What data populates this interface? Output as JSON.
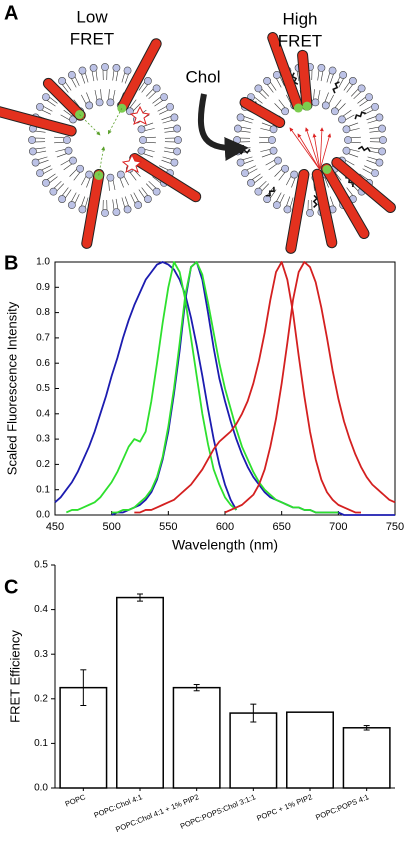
{
  "panel_a": {
    "label": "A",
    "low_fret": [
      "Low",
      "FRET"
    ],
    "high_fret": [
      "High",
      "FRET"
    ],
    "chol": "Chol"
  },
  "chart_data": [
    {
      "type": "line",
      "panel_label": "B",
      "xlabel": "Wavelength (nm)",
      "ylabel": "Scaled Fluorescence Intensity",
      "x": [
        450,
        455,
        460,
        465,
        470,
        475,
        480,
        485,
        490,
        495,
        500,
        505,
        510,
        515,
        520,
        525,
        530,
        535,
        540,
        545,
        550,
        555,
        560,
        565,
        570,
        575,
        580,
        585,
        590,
        595,
        600,
        605,
        610,
        615,
        620,
        625,
        630,
        635,
        640,
        645,
        650,
        655,
        660,
        665,
        670,
        675,
        680,
        685,
        690,
        695,
        700,
        705,
        710,
        715,
        720,
        725,
        730,
        735,
        740,
        745,
        750
      ],
      "xlim": [
        450,
        750
      ],
      "xticks": [
        450,
        500,
        550,
        600,
        650,
        700,
        750
      ],
      "ylim": [
        0,
        1
      ],
      "yticks": [
        {
          "value": 0,
          "label": "0.0"
        },
        0.1,
        0.2,
        0.3,
        0.4,
        0.5,
        0.6,
        0.7,
        0.8,
        0.9,
        {
          "value": 1,
          "label": "1.0"
        }
      ],
      "series": [
        {
          "color": "#1c1cb0",
          "values": [
            0.05,
            0.07,
            0.1,
            0.13,
            0.17,
            0.22,
            0.27,
            0.33,
            0.4,
            0.47,
            0.55,
            0.62,
            0.7,
            0.77,
            0.83,
            0.88,
            0.93,
            0.96,
            0.99,
            1.0,
            0.99,
            0.97,
            0.93,
            0.87,
            0.78,
            0.67,
            0.55,
            0.42,
            0.3,
            0.2,
            0.12,
            0.06,
            0.02,
            null,
            null,
            null,
            null,
            null,
            null,
            null,
            null,
            null,
            null,
            null,
            null,
            null,
            null,
            null,
            null,
            null,
            null,
            null,
            null,
            null,
            null,
            null,
            null,
            null,
            null,
            null,
            null
          ]
        },
        {
          "color": "#1c1cb0",
          "values": [
            null,
            null,
            null,
            null,
            null,
            null,
            null,
            null,
            null,
            null,
            0,
            0.01,
            0.01,
            0.02,
            0.03,
            0.04,
            0.06,
            0.09,
            0.14,
            0.22,
            0.33,
            0.48,
            0.65,
            0.85,
            0.98,
            1.0,
            0.93,
            0.8,
            0.66,
            0.54,
            0.45,
            0.37,
            0.3,
            0.24,
            0.19,
            0.15,
            0.12,
            0.09,
            0.07,
            0.06,
            0.05,
            0.04,
            0.03,
            0.03,
            0.02,
            0.02,
            0.01,
            0.01,
            0.01,
            0.01,
            0.01,
            0,
            0,
            0,
            0,
            0,
            0,
            0,
            0,
            0,
            0
          ]
        },
        {
          "color": "#2ee02e",
          "values": [
            null,
            null,
            0.01,
            0.02,
            0.02,
            0.03,
            0.04,
            0.05,
            0.07,
            0.1,
            0.13,
            0.17,
            0.22,
            0.27,
            0.3,
            0.29,
            0.33,
            0.45,
            0.6,
            0.76,
            0.9,
            1.0,
            0.96,
            0.85,
            0.7,
            0.55,
            0.4,
            0.28,
            0.18,
            0.12,
            0.07,
            0.04,
            0.02,
            null,
            null,
            null,
            null,
            null,
            null,
            null,
            null,
            null,
            null,
            null,
            null,
            null,
            null,
            null,
            null,
            null,
            null,
            null,
            null,
            null,
            null,
            null,
            null,
            null,
            null,
            null,
            null
          ]
        },
        {
          "color": "#2ee02e",
          "values": [
            null,
            null,
            null,
            null,
            null,
            null,
            null,
            null,
            null,
            null,
            0.01,
            0.01,
            0.02,
            0.02,
            0.03,
            0.05,
            0.07,
            0.1,
            0.15,
            0.23,
            0.35,
            0.5,
            0.68,
            0.87,
            0.98,
            1.0,
            0.95,
            0.84,
            0.72,
            0.6,
            0.5,
            0.42,
            0.34,
            0.27,
            0.22,
            0.17,
            0.13,
            0.1,
            0.08,
            0.06,
            0.05,
            0.04,
            0.03,
            0.03,
            0.02,
            0.02,
            0.01,
            0.01,
            0.01,
            0.01,
            0.01,
            null,
            null,
            null,
            null,
            null,
            null,
            null,
            null,
            null,
            null
          ]
        },
        {
          "color": "#d42020",
          "values": [
            null,
            null,
            null,
            null,
            null,
            null,
            null,
            null,
            null,
            null,
            null,
            null,
            null,
            null,
            0.01,
            0.01,
            0.02,
            0.02,
            0.03,
            0.04,
            0.05,
            0.06,
            0.08,
            0.1,
            0.12,
            0.15,
            0.18,
            0.22,
            0.26,
            0.29,
            0.31,
            0.33,
            0.36,
            0.4,
            0.45,
            0.52,
            0.61,
            0.72,
            0.85,
            0.96,
            1.0,
            0.93,
            0.8,
            0.63,
            0.47,
            0.33,
            0.22,
            0.14,
            0.09,
            0.06,
            0.04,
            0.03,
            0.02,
            0.01,
            0.01,
            null,
            null,
            null,
            null,
            null,
            null
          ]
        },
        {
          "color": "#d42020",
          "values": [
            null,
            null,
            null,
            null,
            null,
            null,
            null,
            null,
            null,
            null,
            null,
            null,
            null,
            null,
            null,
            null,
            null,
            null,
            null,
            null,
            null,
            null,
            null,
            null,
            null,
            null,
            null,
            null,
            null,
            null,
            0.01,
            0.02,
            0.03,
            0.04,
            0.06,
            0.08,
            0.12,
            0.18,
            0.27,
            0.38,
            0.52,
            0.68,
            0.85,
            0.96,
            1.0,
            0.98,
            0.92,
            0.82,
            0.7,
            0.57,
            0.46,
            0.37,
            0.3,
            0.24,
            0.19,
            0.15,
            0.12,
            0.1,
            0.08,
            0.06,
            0.05
          ]
        }
      ]
    },
    {
      "type": "bar",
      "panel_label": "C",
      "ylabel": "FRET Efficiency",
      "categories": [
        "POPC",
        "POPC:Chol 4:1",
        "POPC:Chol 4:1 + 1% PIP2",
        "POPC:POPS:Chol 3:1:1",
        "POPC + 1% PIP2",
        "POPC:POPS 4:1"
      ],
      "values": [
        0.225,
        0.427,
        0.225,
        0.168,
        0.17,
        0.135
      ],
      "errors": [
        0.04,
        0.008,
        0.007,
        0.02,
        null,
        0.005
      ],
      "color": "#ffffff",
      "ylim": [
        0,
        0.5
      ],
      "yticks": [
        {
          "value": 0,
          "label": "0.0"
        },
        0.1,
        0.2,
        0.3,
        0.4,
        0.5
      ]
    }
  ]
}
